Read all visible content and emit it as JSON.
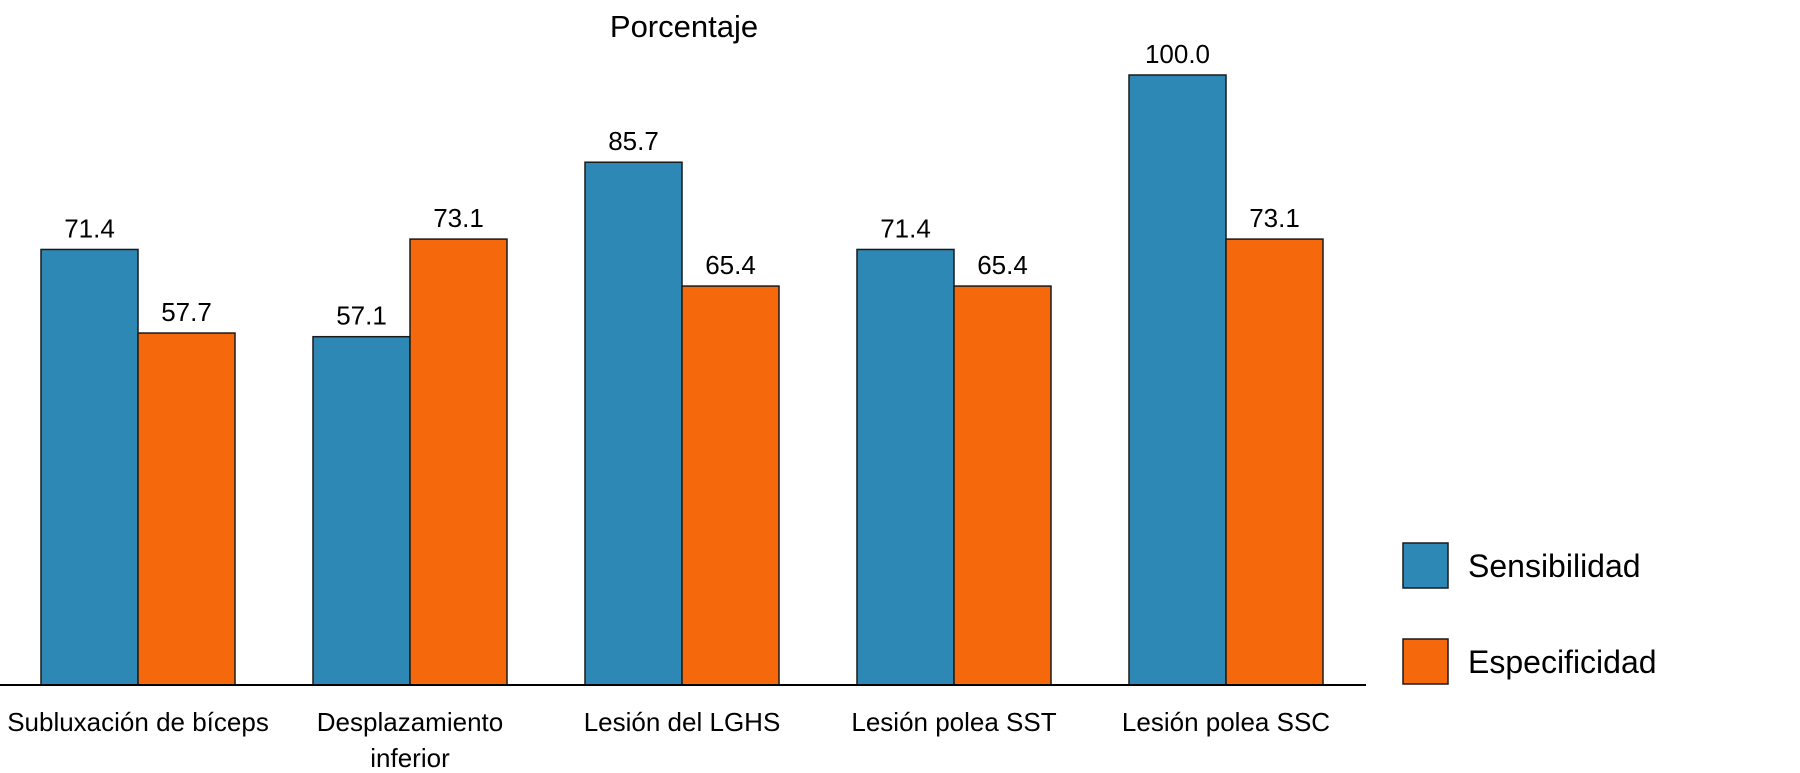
{
  "chart_data": {
    "type": "bar",
    "title": "Porcentaje",
    "xlabel": "",
    "ylabel": "",
    "ylim": [
      0,
      100
    ],
    "grid": false,
    "legend_position": "right",
    "categories": [
      [
        "Subluxación de bíceps"
      ],
      [
        "Desplazamiento",
        "inferior"
      ],
      [
        "Lesión del LGHS"
      ],
      [
        "Lesión polea SST"
      ],
      [
        "Lesión polea SSC"
      ]
    ],
    "series": [
      {
        "name": "Sensibilidad",
        "color": "#2e88b5",
        "values": [
          71.4,
          57.1,
          85.7,
          71.4,
          100.0
        ],
        "labels": [
          "71.4",
          "57.1",
          "85.7",
          "71.4",
          "100.0"
        ]
      },
      {
        "name": "Especificidad",
        "color": "#f5680c",
        "values": [
          57.7,
          73.1,
          65.4,
          65.4,
          73.1
        ],
        "labels": [
          "57.7",
          "73.1",
          "65.4",
          "65.4",
          "73.1"
        ]
      }
    ]
  }
}
